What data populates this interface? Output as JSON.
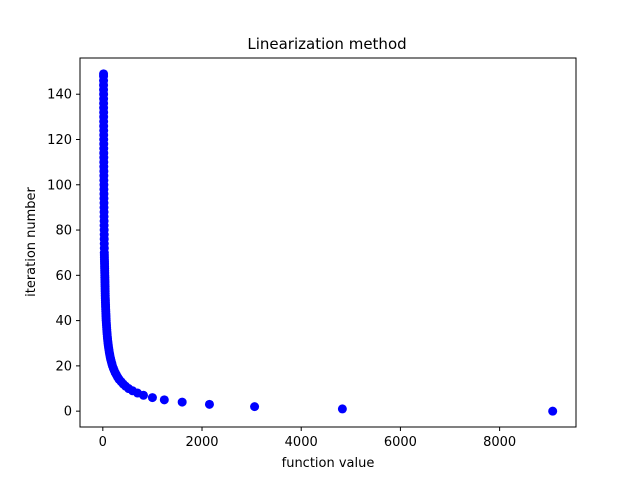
{
  "chart_data": {
    "type": "scatter",
    "title": "Linearization method",
    "xlabel": "function value",
    "ylabel": "iteration number",
    "xlim": [
      -460,
      9540
    ],
    "ylim": [
      -7,
      156
    ],
    "xticks": [
      0,
      2000,
      4000,
      6000,
      8000
    ],
    "yticks": [
      0,
      20,
      40,
      60,
      80,
      100,
      120,
      140
    ],
    "grid": false,
    "marker_color": "#0000ff",
    "series": [
      {
        "points": [
          [
            9070,
            0
          ],
          [
            4830,
            1
          ],
          [
            3060,
            2
          ],
          [
            2150,
            3
          ],
          [
            1600,
            4
          ],
          [
            1240,
            5
          ],
          [
            1000,
            6
          ],
          [
            820,
            7
          ],
          [
            700,
            8
          ],
          [
            600,
            9
          ],
          [
            520,
            10
          ],
          [
            460,
            11
          ],
          [
            410,
            12
          ],
          [
            370,
            13
          ],
          [
            330,
            14
          ],
          [
            300,
            15
          ],
          [
            275,
            16
          ],
          [
            250,
            17
          ],
          [
            230,
            18
          ],
          [
            212,
            19
          ],
          [
            195,
            20
          ],
          [
            182,
            21
          ],
          [
            170,
            22
          ],
          [
            158,
            23
          ],
          [
            148,
            24
          ],
          [
            139,
            25
          ],
          [
            131,
            26
          ],
          [
            124,
            27
          ],
          [
            117,
            28
          ],
          [
            111,
            29
          ],
          [
            105,
            30
          ],
          [
            100,
            31
          ],
          [
            95,
            32
          ],
          [
            91,
            33
          ],
          [
            87,
            34
          ],
          [
            83,
            35
          ],
          [
            80,
            36
          ],
          [
            77,
            37
          ],
          [
            74,
            38
          ],
          [
            71,
            39
          ],
          [
            68,
            40
          ],
          [
            66,
            41
          ],
          [
            64,
            42
          ],
          [
            62,
            43
          ],
          [
            60,
            44
          ],
          [
            58,
            45
          ],
          [
            56,
            46
          ],
          [
            55,
            47
          ],
          [
            53,
            48
          ],
          [
            52,
            49
          ],
          [
            50,
            50
          ],
          [
            49,
            51
          ],
          [
            48,
            52
          ],
          [
            47,
            53
          ],
          [
            46,
            54
          ],
          [
            45,
            55
          ],
          [
            44,
            56
          ],
          [
            43,
            57
          ],
          [
            42,
            58
          ],
          [
            41,
            59
          ],
          [
            40,
            60
          ],
          [
            39,
            61
          ],
          [
            38,
            62
          ],
          [
            37,
            63
          ],
          [
            36,
            64
          ],
          [
            35,
            65
          ],
          [
            34,
            66
          ],
          [
            33,
            67
          ],
          [
            32,
            68
          ],
          [
            31,
            69
          ],
          [
            30,
            70
          ],
          [
            30,
            72
          ],
          [
            29,
            74
          ],
          [
            28,
            76
          ],
          [
            28,
            78
          ],
          [
            27,
            80
          ],
          [
            26,
            82
          ],
          [
            26,
            84
          ],
          [
            25,
            86
          ],
          [
            25,
            88
          ],
          [
            24,
            90
          ],
          [
            24,
            92
          ],
          [
            23,
            94
          ],
          [
            23,
            96
          ],
          [
            22,
            98
          ],
          [
            22,
            100
          ],
          [
            21,
            102
          ],
          [
            21,
            104
          ],
          [
            21,
            106
          ],
          [
            20,
            108
          ],
          [
            20,
            110
          ],
          [
            20,
            112
          ],
          [
            19,
            114
          ],
          [
            19,
            116
          ],
          [
            19,
            118
          ],
          [
            18,
            120
          ],
          [
            18,
            122
          ],
          [
            18,
            124
          ],
          [
            17,
            126
          ],
          [
            17,
            128
          ],
          [
            17,
            130
          ],
          [
            17,
            132
          ],
          [
            16,
            134
          ],
          [
            16,
            136
          ],
          [
            16,
            138
          ],
          [
            16,
            140
          ],
          [
            15,
            142
          ],
          [
            15,
            144
          ],
          [
            15,
            146
          ],
          [
            15,
            148
          ],
          [
            15,
            149
          ]
        ]
      }
    ]
  }
}
